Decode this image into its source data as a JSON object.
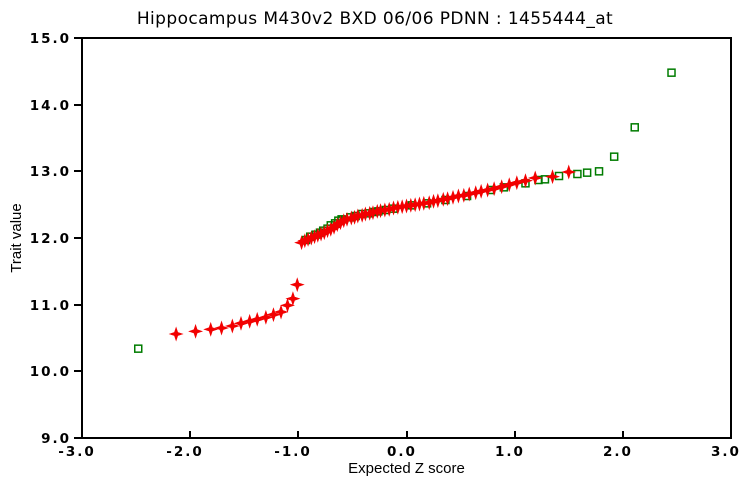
{
  "chart_data": {
    "type": "scatter",
    "title": "Hippocampus M430v2 BXD 06/06 PDNN : 1455444_at",
    "xlabel": "Expected Z score",
    "ylabel": "Trait value",
    "xlim": [
      -3.0,
      3.0
    ],
    "ylim": [
      9.0,
      15.0
    ],
    "grid": false,
    "legend": "none",
    "frame": true,
    "xticks": [
      {
        "value": -3.0,
        "label": "-3.0"
      },
      {
        "value": -2.0,
        "label": "-2.0"
      },
      {
        "value": -1.0,
        "label": "-1.0"
      },
      {
        "value": 0.0,
        "label": "0.0"
      },
      {
        "value": 1.0,
        "label": "1.0"
      },
      {
        "value": 2.0,
        "label": "2.0"
      },
      {
        "value": 3.0,
        "label": "3.0"
      }
    ],
    "yticks": [
      {
        "value": 15.0,
        "label": "15.0"
      },
      {
        "value": 14.0,
        "label": "14.0"
      },
      {
        "value": 13.0,
        "label": "13.0"
      },
      {
        "value": 12.0,
        "label": "12.0"
      },
      {
        "value": 11.0,
        "label": "11.0"
      },
      {
        "value": 10.0,
        "label": "10.0"
      },
      {
        "value": 9.0,
        "label": "9.0"
      }
    ],
    "series": [
      {
        "name": "green-open-squares",
        "marker": "open-square",
        "color": "#007c00",
        "points": [
          [
            -2.48,
            10.34
          ],
          [
            -0.93,
            11.97
          ],
          [
            -0.89,
            12.02
          ],
          [
            -0.84,
            12.05
          ],
          [
            -0.8,
            12.08
          ],
          [
            -0.77,
            12.11
          ],
          [
            -0.73,
            12.14
          ],
          [
            -0.7,
            12.19
          ],
          [
            -0.66,
            12.22
          ],
          [
            -0.63,
            12.26
          ],
          [
            -0.6,
            12.28
          ],
          [
            -0.52,
            12.31
          ],
          [
            -0.47,
            12.33
          ],
          [
            -0.41,
            12.36
          ],
          [
            -0.35,
            12.37
          ],
          [
            -0.3,
            12.39
          ],
          [
            -0.26,
            12.4
          ],
          [
            -0.19,
            12.42
          ],
          [
            -0.12,
            12.44
          ],
          [
            0.05,
            12.49
          ],
          [
            0.19,
            12.52
          ],
          [
            0.36,
            12.57
          ],
          [
            0.56,
            12.63
          ],
          [
            0.78,
            12.72
          ],
          [
            0.9,
            12.76
          ],
          [
            1.1,
            12.82
          ],
          [
            1.22,
            12.87
          ],
          [
            1.28,
            12.88
          ],
          [
            1.41,
            12.93
          ],
          [
            1.58,
            12.96
          ],
          [
            1.67,
            12.98
          ],
          [
            1.78,
            13.0
          ],
          [
            1.92,
            13.22
          ],
          [
            2.11,
            13.66
          ],
          [
            2.45,
            14.48
          ]
        ]
      },
      {
        "name": "red-diamonds",
        "marker": "four-point-star",
        "color": "#f20000",
        "points": [
          [
            -2.13,
            10.56
          ],
          [
            -1.95,
            10.6
          ],
          [
            -1.81,
            10.63
          ],
          [
            -1.71,
            10.65
          ],
          [
            -1.61,
            10.68
          ],
          [
            -1.53,
            10.72
          ],
          [
            -1.45,
            10.75
          ],
          [
            -1.38,
            10.78
          ],
          [
            -1.3,
            10.81
          ],
          [
            -1.23,
            10.85
          ],
          [
            -1.16,
            10.89
          ],
          [
            -1.1,
            10.99
          ],
          [
            -1.05,
            11.09
          ],
          [
            -1.01,
            11.3
          ],
          [
            -0.97,
            11.93
          ],
          [
            -0.94,
            11.96
          ],
          [
            -0.91,
            11.98
          ],
          [
            -0.88,
            12.0
          ],
          [
            -0.85,
            12.02
          ],
          [
            -0.82,
            12.04
          ],
          [
            -0.79,
            12.06
          ],
          [
            -0.76,
            12.08
          ],
          [
            -0.73,
            12.11
          ],
          [
            -0.7,
            12.13
          ],
          [
            -0.67,
            12.16
          ],
          [
            -0.64,
            12.2
          ],
          [
            -0.61,
            12.23
          ],
          [
            -0.58,
            12.26
          ],
          [
            -0.55,
            12.28
          ],
          [
            -0.51,
            12.3
          ],
          [
            -0.48,
            12.31
          ],
          [
            -0.45,
            12.33
          ],
          [
            -0.41,
            12.34
          ],
          [
            -0.38,
            12.36
          ],
          [
            -0.34,
            12.37
          ],
          [
            -0.31,
            12.38
          ],
          [
            -0.27,
            12.4
          ],
          [
            -0.24,
            12.41
          ],
          [
            -0.2,
            12.42
          ],
          [
            -0.16,
            12.43
          ],
          [
            -0.12,
            12.45
          ],
          [
            -0.08,
            12.46
          ],
          [
            -0.04,
            12.47
          ],
          [
            0.0,
            12.48
          ],
          [
            0.04,
            12.49
          ],
          [
            0.08,
            12.5
          ],
          [
            0.12,
            12.51
          ],
          [
            0.16,
            12.52
          ],
          [
            0.21,
            12.53
          ],
          [
            0.25,
            12.55
          ],
          [
            0.29,
            12.56
          ],
          [
            0.34,
            12.58
          ],
          [
            0.38,
            12.59
          ],
          [
            0.43,
            12.61
          ],
          [
            0.48,
            12.63
          ],
          [
            0.53,
            12.64
          ],
          [
            0.58,
            12.66
          ],
          [
            0.64,
            12.68
          ],
          [
            0.69,
            12.7
          ],
          [
            0.75,
            12.72
          ],
          [
            0.81,
            12.74
          ],
          [
            0.88,
            12.77
          ],
          [
            0.95,
            12.8
          ],
          [
            1.02,
            12.83
          ],
          [
            1.1,
            12.86
          ],
          [
            1.19,
            12.9
          ],
          [
            1.35,
            12.92
          ],
          [
            1.5,
            12.99
          ]
        ]
      }
    ]
  }
}
